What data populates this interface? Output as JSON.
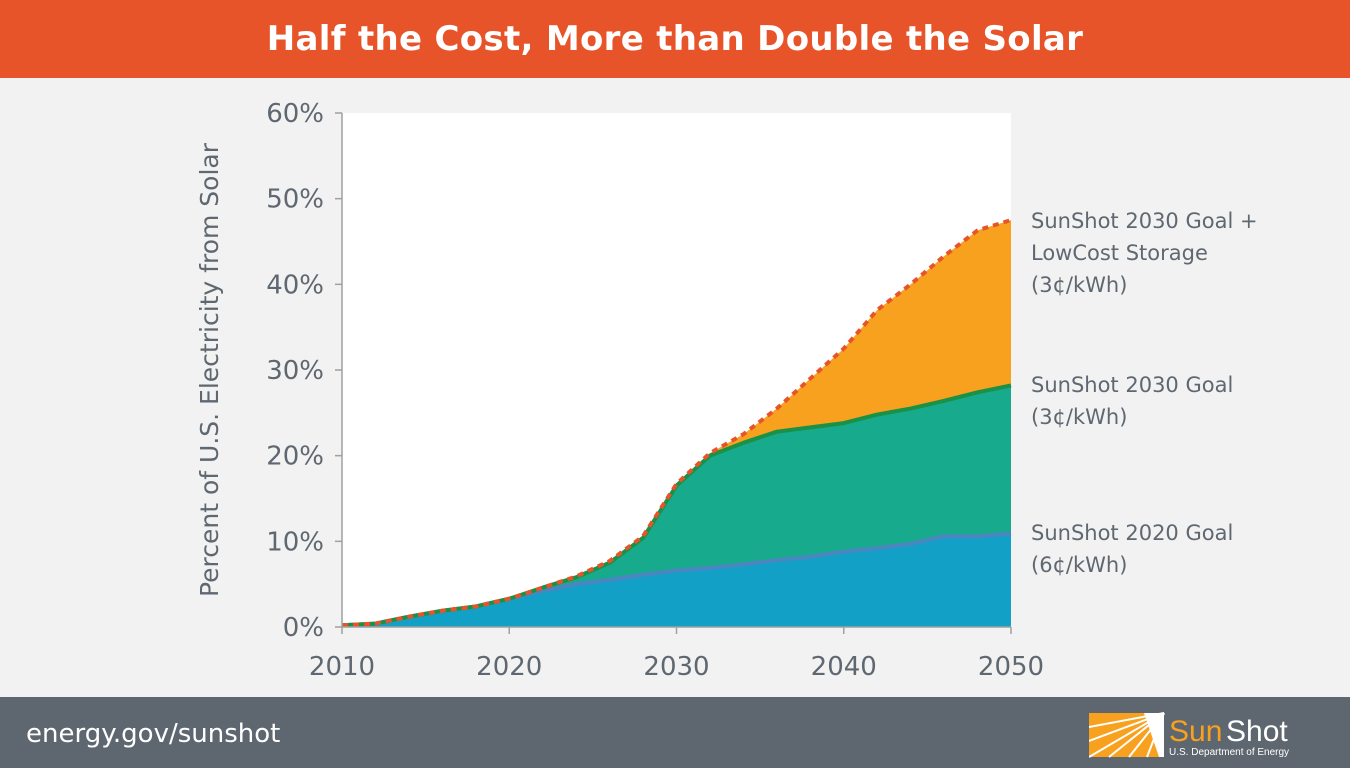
{
  "header": {
    "title": "Half the Cost, More than Double the Solar"
  },
  "footer": {
    "url": "energy.gov/sunshot",
    "logo_text": "SunShot",
    "logo_sub": "U.S. Department of Energy"
  },
  "colors": {
    "header": "#e8542a",
    "footer": "#5e6770",
    "blue": "#12a0c6",
    "green": "#17aa8c",
    "orange": "#f7a11f"
  },
  "chart_data": {
    "type": "area",
    "stacked": true,
    "title": "",
    "xlabel": "",
    "ylabel": "Percent of U.S. Electricity from Solar",
    "xlim": [
      2010,
      2050
    ],
    "ylim": [
      0,
      60
    ],
    "x_ticks": [
      "2010",
      "2020",
      "2030",
      "2040",
      "2050"
    ],
    "y_ticks": [
      "0%",
      "10%",
      "20%",
      "30%",
      "40%",
      "50%",
      "60%"
    ],
    "grid": false,
    "legend": "right, direct labels",
    "x": [
      2010,
      2012,
      2014,
      2016,
      2018,
      2020,
      2022,
      2024,
      2026,
      2028,
      2030,
      2032,
      2034,
      2036,
      2038,
      2040,
      2042,
      2044,
      2046,
      2048,
      2050
    ],
    "series": [
      {
        "name": "SunShot 2020 Goal (6¢/kWh)",
        "label_lines": [
          "SunShot 2020 Goal",
          "(6¢/kWh)"
        ],
        "color": "#12a0c6",
        "line_color": "#4a86c0",
        "values": [
          0.2,
          0.4,
          1.2,
          1.9,
          2.4,
          3.3,
          4.2,
          5.0,
          5.5,
          6.1,
          6.6,
          6.9,
          7.3,
          7.8,
          8.2,
          8.8,
          9.2,
          9.7,
          10.6,
          10.6,
          10.9
        ]
      },
      {
        "name": "SunShot 2030 Goal (3¢/kWh)",
        "label_lines": [
          "SunShot 2030 Goal",
          "(3¢/kWh)"
        ],
        "color": "#17aa8c",
        "line_color": "#1a9146",
        "values": [
          0.2,
          0.4,
          1.2,
          1.9,
          2.4,
          3.3,
          4.6,
          5.8,
          7.5,
          10.4,
          16.5,
          20.0,
          21.5,
          22.8,
          23.3,
          23.8,
          24.8,
          25.5,
          26.4,
          27.4,
          28.2
        ]
      },
      {
        "name": "SunShot 2030 Goal + LowCost Storage (3¢/kWh)",
        "label_lines": [
          "SunShot 2030 Goal +",
          "LowCost Storage",
          "(3¢/kWh)"
        ],
        "color": "#f7a11f",
        "line_color": "#e8542a",
        "values": [
          0.2,
          0.4,
          1.2,
          1.9,
          2.4,
          3.3,
          4.6,
          5.9,
          7.7,
          10.6,
          16.7,
          20.3,
          22.5,
          25.5,
          29.0,
          32.5,
          37.0,
          40.0,
          43.3,
          46.3,
          47.5
        ]
      }
    ],
    "values_note": "cumulative totals"
  }
}
